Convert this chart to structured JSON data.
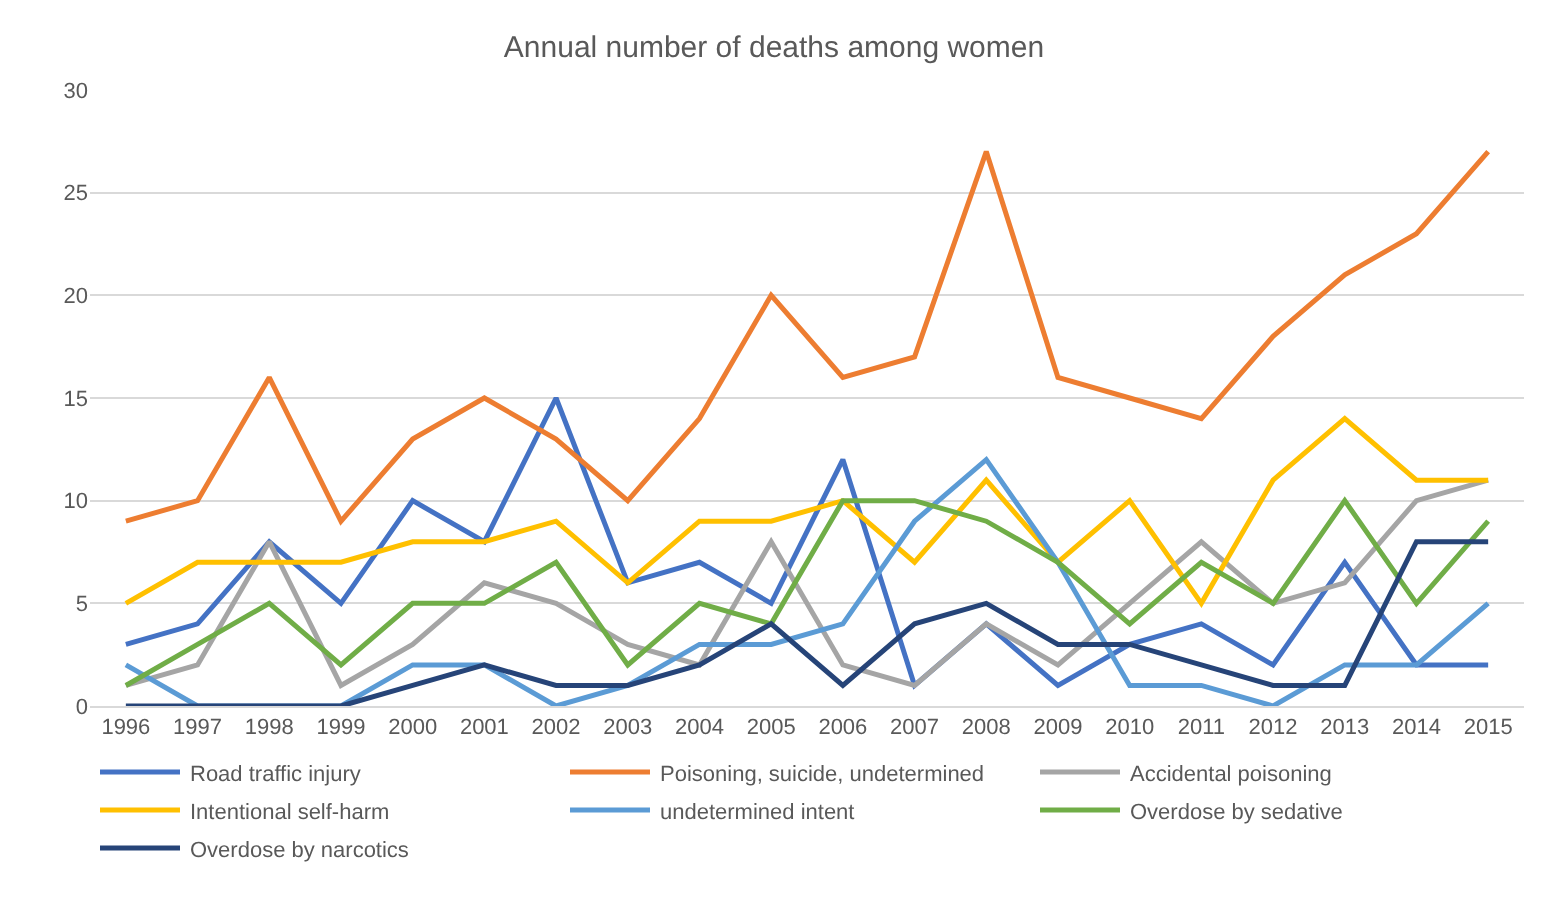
{
  "chart_data": {
    "type": "line",
    "title": "Annual number of deaths among women",
    "categories": [
      "1996",
      "1997",
      "1998",
      "1999",
      "2000",
      "2001",
      "2002",
      "2003",
      "2004",
      "2005",
      "2006",
      "2007",
      "2008",
      "2009",
      "2010",
      "2011",
      "2012",
      "2013",
      "2014",
      "2015"
    ],
    "series": [
      {
        "name": "Road traffic injury",
        "color": "#4472c4",
        "values": [
          3,
          4,
          8,
          5,
          10,
          8,
          15,
          6,
          7,
          5,
          12,
          1,
          4,
          1,
          3,
          4,
          2,
          7,
          2,
          2
        ]
      },
      {
        "name": "Poisoning, suicide, undetermined",
        "color": "#ed7d31",
        "values": [
          9,
          10,
          16,
          9,
          13,
          15,
          13,
          10,
          14,
          20,
          16,
          17,
          27,
          16,
          15,
          14,
          18,
          21,
          23,
          27
        ]
      },
      {
        "name": "Accidental poisoning",
        "color": "#a5a5a5",
        "values": [
          1,
          2,
          8,
          1,
          3,
          6,
          5,
          3,
          2,
          8,
          2,
          1,
          4,
          2,
          5,
          8,
          5,
          6,
          10,
          11
        ]
      },
      {
        "name": "Intentional self-harm",
        "color": "#ffc000",
        "values": [
          5,
          7,
          7,
          7,
          8,
          8,
          9,
          6,
          9,
          9,
          10,
          7,
          11,
          7,
          10,
          5,
          11,
          14,
          11,
          11
        ]
      },
      {
        "name": "undetermined intent",
        "color": "#5b9bd5",
        "values": [
          2,
          0,
          0,
          0,
          2,
          2,
          0,
          1,
          3,
          3,
          4,
          9,
          12,
          7,
          1,
          1,
          0,
          2,
          2,
          5
        ]
      },
      {
        "name": "Overdose by sedative",
        "color": "#70ad47",
        "values": [
          1,
          3,
          5,
          2,
          5,
          5,
          7,
          2,
          5,
          4,
          10,
          10,
          9,
          7,
          4,
          7,
          5,
          10,
          5,
          9
        ]
      },
      {
        "name": "Overdose by narcotics",
        "color": "#264478",
        "values": [
          0,
          0,
          0,
          0,
          1,
          2,
          1,
          1,
          2,
          4,
          1,
          4,
          5,
          3,
          3,
          2,
          1,
          1,
          8,
          8
        ]
      }
    ],
    "ylim": [
      0,
      30
    ],
    "yticks": [
      0,
      5,
      10,
      15,
      20,
      25,
      30
    ],
    "grid": "y",
    "legend": "bottom",
    "marker": "none",
    "line_style": "solid"
  }
}
